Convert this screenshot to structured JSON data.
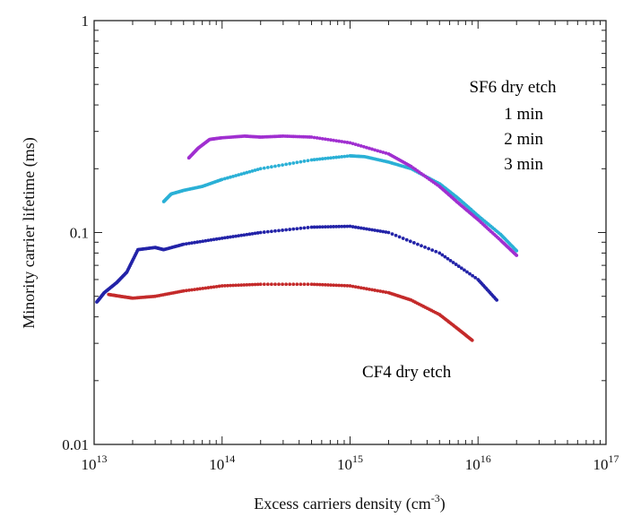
{
  "chart_data": {
    "type": "scatter",
    "xlabel": "Excess carriers density (cm",
    "xlabel_sup": "-3",
    "xlabel_end": ")",
    "ylabel": "Minority carrier lifetime (ms)",
    "x_scale": "log",
    "y_scale": "log",
    "xlim": [
      10000000000000.0,
      1e+17
    ],
    "ylim": [
      0.01,
      1
    ],
    "x_ticks": [
      {
        "value": 10000000000000.0,
        "base": "10",
        "exp": "13"
      },
      {
        "value": 100000000000000.0,
        "base": "10",
        "exp": "14"
      },
      {
        "value": 1000000000000000.0,
        "base": "10",
        "exp": "15"
      },
      {
        "value": 1e+16,
        "base": "10",
        "exp": "16"
      },
      {
        "value": 1e+17,
        "base": "10",
        "exp": "17"
      }
    ],
    "y_ticks": [
      {
        "value": 0.01,
        "label": "0.01"
      },
      {
        "value": 0.1,
        "label": "0.1"
      },
      {
        "value": 1,
        "label": "1"
      }
    ],
    "grid": false,
    "annotations": [
      {
        "text": "SF6 dry etch",
        "color": "#1a1a1a"
      },
      {
        "text": "1 min",
        "color": "#2323a8"
      },
      {
        "text": "2 min",
        "color": "#2ab0d6"
      },
      {
        "text": "3 min",
        "color": "#a02fd0"
      },
      {
        "text": "CF4 dry etch",
        "color": "#1a1a1a"
      }
    ],
    "series": [
      {
        "color": "#c42a2a",
        "x": [
          13000000000000.0,
          16000000000000.0,
          20000000000000.0,
          30000000000000.0,
          50000000000000.0,
          100000000000000.0,
          200000000000000.0,
          500000000000000.0,
          1000000000000000.0,
          2000000000000000.0,
          3000000000000000.0,
          5000000000000000.0,
          7000000000000000.0,
          9000000000000000.0
        ],
        "y": [
          0.051,
          0.05,
          0.049,
          0.05,
          0.053,
          0.056,
          0.057,
          0.057,
          0.056,
          0.052,
          0.048,
          0.041,
          0.035,
          0.031
        ]
      },
      {
        "color": "#2323a8",
        "x": [
          10500000000000.0,
          12000000000000.0,
          15000000000000.0,
          18000000000000.0,
          22000000000000.0,
          30000000000000.0,
          35000000000000.0,
          50000000000000.0,
          100000000000000.0,
          200000000000000.0,
          500000000000000.0,
          1000000000000000.0,
          2000000000000000.0,
          5000000000000000.0,
          1e+16,
          1.4e+16
        ],
        "y": [
          0.047,
          0.052,
          0.058,
          0.065,
          0.083,
          0.085,
          0.083,
          0.088,
          0.094,
          0.1,
          0.106,
          0.107,
          0.1,
          0.08,
          0.06,
          0.048
        ]
      },
      {
        "color": "#2ab0d6",
        "x": [
          35000000000000.0,
          40000000000000.0,
          50000000000000.0,
          70000000000000.0,
          100000000000000.0,
          200000000000000.0,
          500000000000000.0,
          1000000000000000.0,
          1300000000000000.0,
          2000000000000000.0,
          3000000000000000.0,
          5000000000000000.0,
          7000000000000000.0,
          1e+16,
          1.5e+16,
          2e+16
        ],
        "y": [
          0.14,
          0.152,
          0.158,
          0.165,
          0.178,
          0.2,
          0.22,
          0.23,
          0.228,
          0.215,
          0.2,
          0.17,
          0.145,
          0.12,
          0.098,
          0.082
        ]
      },
      {
        "color": "#a02fd0",
        "x": [
          55000000000000.0,
          65000000000000.0,
          80000000000000.0,
          100000000000000.0,
          150000000000000.0,
          200000000000000.0,
          300000000000000.0,
          500000000000000.0,
          1000000000000000.0,
          2000000000000000.0,
          3000000000000000.0,
          5000000000000000.0,
          7000000000000000.0,
          1e+16,
          1.5e+16,
          2e+16
        ],
        "y": [
          0.225,
          0.25,
          0.275,
          0.28,
          0.285,
          0.282,
          0.285,
          0.282,
          0.265,
          0.235,
          0.205,
          0.165,
          0.138,
          0.115,
          0.092,
          0.078
        ]
      }
    ]
  }
}
